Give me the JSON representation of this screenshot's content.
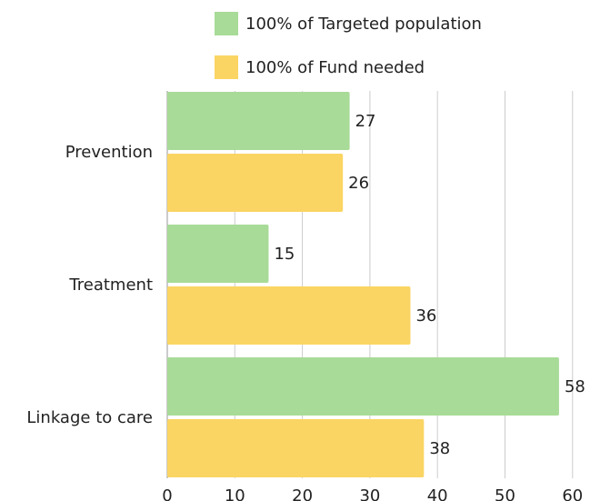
{
  "chart_data": {
    "type": "bar",
    "orientation": "horizontal",
    "categories": [
      "Prevention",
      "Treatment",
      "Linkage to care"
    ],
    "series": [
      {
        "name": "100% of Targeted population",
        "values": [
          27,
          15,
          58
        ],
        "color": "#a8db97"
      },
      {
        "name": "100% of Fund needed",
        "values": [
          26,
          36,
          38
        ],
        "color": "#fad563"
      }
    ],
    "xlim": [
      0,
      60
    ],
    "xticks": [
      0,
      10,
      20,
      30,
      40,
      50,
      60
    ],
    "grid": true,
    "legend_position": "top"
  }
}
